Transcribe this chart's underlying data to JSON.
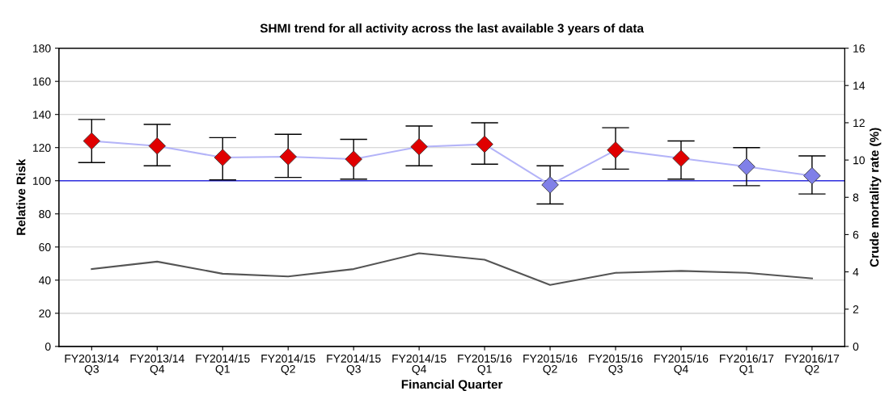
{
  "chart_data": {
    "type": "line",
    "title": "SHMI trend for all activity across the last available 3 years of data",
    "xlabel": "Financial Quarter",
    "ylabel": "Relative Risk",
    "y2label": "Crude mortality rate (%)",
    "categories": [
      "FY2013/14\nQ3",
      "FY2013/14\nQ4",
      "FY2014/15\nQ1",
      "FY2014/15\nQ2",
      "FY2014/15\nQ3",
      "FY2014/15\nQ4",
      "FY2015/16\nQ1",
      "FY2015/16\nQ2",
      "FY2015/16\nQ3",
      "FY2015/16\nQ4",
      "FY2016/17\nQ1",
      "FY2016/17\nQ2"
    ],
    "series": [
      {
        "color": "#b4b4f8",
        "marker": "diamond",
        "colors": [
          "#e00000",
          "#e00000",
          "#e00000",
          "#e00000",
          "#e00000",
          "#e00000",
          "#e00000",
          "#8080e8",
          "#e00000",
          "#e00000",
          "#8080e8",
          "#8080e8"
        ],
        "values": [
          124,
          121,
          114,
          114.5,
          113,
          120.5,
          122,
          97.5,
          118.5,
          113.5,
          108.5,
          103
        ],
        "errors": [
          [
            111,
            137
          ],
          [
            109,
            134
          ],
          [
            100.5,
            126
          ],
          [
            102,
            128
          ],
          [
            101,
            125
          ],
          [
            109,
            133
          ],
          [
            110,
            135
          ],
          [
            86,
            109
          ],
          [
            107,
            132
          ],
          [
            101,
            124
          ],
          [
            97,
            120
          ],
          [
            92,
            115
          ]
        ]
      },
      {
        "color": "#555555",
        "marker": "none",
        "axis": "y2",
        "values": [
          4.15,
          4.55,
          3.9,
          3.75,
          4.15,
          5.0,
          4.65,
          3.3,
          3.95,
          4.05,
          3.95,
          3.65
        ]
      }
    ],
    "ylim": [
      0,
      180
    ],
    "yticks": [
      0,
      20,
      40,
      60,
      80,
      100,
      120,
      140,
      160,
      180
    ],
    "y2lim": [
      0,
      16
    ],
    "y2ticks": [
      0,
      2,
      4,
      6,
      8,
      10,
      12,
      14,
      16
    ],
    "ref_lines": [
      {
        "axis": "y",
        "value": 100,
        "color": "#3030e0"
      }
    ],
    "grid": "y"
  }
}
